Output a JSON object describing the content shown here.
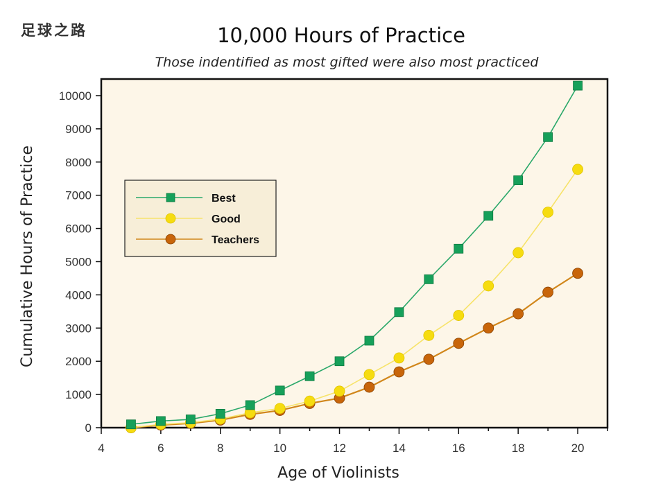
{
  "watermark": "足球之路",
  "colors": {
    "best": "#16a05a",
    "best_line": "#2aa86a",
    "good": "#f6dc10",
    "good_line": "#f7e36a",
    "teachers": "#c8650a",
    "teachers_line": "#d1861a",
    "plot_bg": "#fdf6e8",
    "legend_bg": "#f7eed8"
  },
  "chart_data": {
    "type": "line",
    "title": "10,000 Hours of Practice",
    "subtitle": "Those indentified as most gifted were also most practiced",
    "xlabel": "Age of Violinists",
    "ylabel": "Cumulative Hours of Practice",
    "xlim": [
      4,
      21
    ],
    "ylim": [
      0,
      10500
    ],
    "xticks": [
      4,
      6,
      8,
      10,
      12,
      14,
      16,
      18,
      20
    ],
    "yticks": [
      0,
      1000,
      2000,
      3000,
      4000,
      5000,
      6000,
      7000,
      8000,
      9000,
      10000
    ],
    "grid": false,
    "legend_position": "middle-left",
    "x": [
      5,
      6,
      7,
      8,
      9,
      10,
      11,
      12,
      13,
      14,
      15,
      16,
      17,
      18,
      19,
      20
    ],
    "series": [
      {
        "name": "Best",
        "marker": "square",
        "values": [
          100,
          200,
          250,
          420,
          680,
          1120,
          1550,
          2000,
          2620,
          3480,
          4470,
          5390,
          6380,
          7450,
          8750,
          10300
        ]
      },
      {
        "name": "Good",
        "marker": "circle",
        "values": [
          0,
          100,
          150,
          260,
          450,
          580,
          800,
          1100,
          1600,
          2100,
          2780,
          3380,
          4270,
          5270,
          6490,
          7780
        ]
      },
      {
        "name": "Teachers",
        "marker": "circle",
        "values": [
          0,
          80,
          130,
          230,
          400,
          520,
          730,
          890,
          1220,
          1680,
          2060,
          2540,
          3000,
          3430,
          4080,
          4650
        ]
      }
    ]
  }
}
